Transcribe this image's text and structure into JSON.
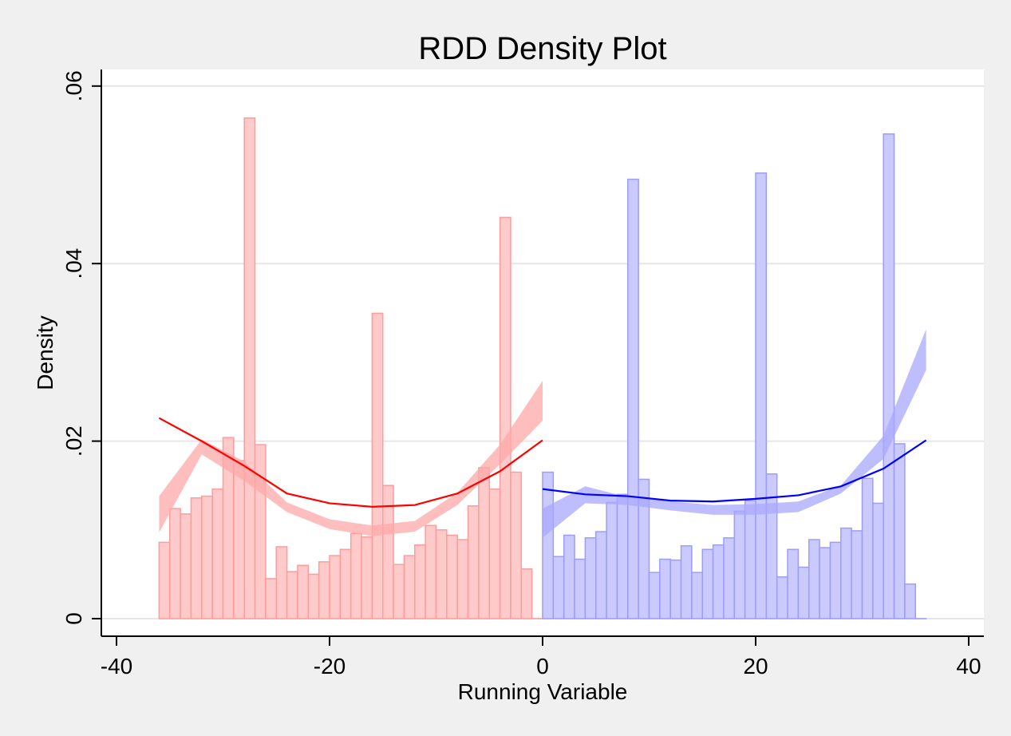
{
  "chart_data": {
    "type": "bar",
    "title": "RDD Density Plot",
    "xlabel": "Running Variable",
    "ylabel": "Density",
    "xlim": [
      -40,
      40
    ],
    "ylim": [
      0,
      0.06
    ],
    "x_ticks": [
      {
        "value": -40,
        "label": "-40"
      },
      {
        "value": -20,
        "label": "-20"
      },
      {
        "value": 0,
        "label": "0"
      },
      {
        "value": 20,
        "label": "20"
      },
      {
        "value": 40,
        "label": "40"
      }
    ],
    "y_ticks": [
      {
        "value": 0,
        "label": "0"
      },
      {
        "value": 0.02,
        "label": ".02"
      },
      {
        "value": 0.04,
        "label": ".04"
      },
      {
        "value": 0.06,
        "label": ".06"
      }
    ],
    "grid": "horizontal",
    "bin_width": 1,
    "left_color": "#ff0000",
    "right_color": "#0000ff",
    "left_fill": "#ffcaca",
    "right_fill": "#cacaff",
    "left_edge": "#ff9c9c",
    "right_edge": "#9c9cff",
    "left_band": "#ffa8a8",
    "right_band": "#a8a8ff",
    "left_histogram": {
      "bin_starts": [
        -36,
        -35,
        -34,
        -33,
        -32,
        -31,
        -30,
        -29,
        -28,
        -27,
        -26,
        -25,
        -24,
        -23,
        -22,
        -21,
        -20,
        -19,
        -18,
        -17,
        -16,
        -15,
        -14,
        -13,
        -12,
        -11,
        -10,
        -9,
        -8,
        -7,
        -6,
        -5,
        -4,
        -3,
        -2,
        -1
      ],
      "values": [
        0.0086,
        0.0124,
        0.0118,
        0.0136,
        0.0138,
        0.0146,
        0.0204,
        0.0178,
        0.0564,
        0.0196,
        0.0045,
        0.0081,
        0.0053,
        0.006,
        0.005,
        0.0064,
        0.0071,
        0.0078,
        0.0096,
        0.0092,
        0.0344,
        0.015,
        0.0061,
        0.0071,
        0.0083,
        0.0105,
        0.01,
        0.0094,
        0.0089,
        0.0127,
        0.017,
        0.0146,
        0.0452,
        0.0165,
        0.0056,
        0.0
      ]
    },
    "right_histogram": {
      "bin_starts": [
        0,
        1,
        2,
        3,
        4,
        5,
        6,
        7,
        8,
        9,
        10,
        11,
        12,
        13,
        14,
        15,
        16,
        17,
        18,
        19,
        20,
        21,
        22,
        23,
        24,
        25,
        26,
        27,
        28,
        29,
        30,
        31,
        32,
        33,
        34,
        35
      ],
      "values": [
        0.0165,
        0.007,
        0.0094,
        0.0067,
        0.0091,
        0.0098,
        0.0131,
        0.014,
        0.0495,
        0.0157,
        0.0052,
        0.0067,
        0.0066,
        0.0082,
        0.0052,
        0.0078,
        0.0083,
        0.0091,
        0.0121,
        0.0133,
        0.0502,
        0.0163,
        0.0047,
        0.0078,
        0.0058,
        0.0089,
        0.008,
        0.0086,
        0.0102,
        0.0099,
        0.0158,
        0.013,
        0.0546,
        0.0197,
        0.0039,
        0.0
      ]
    },
    "left_fit": {
      "x": [
        -36,
        -32,
        -28,
        -24,
        -20,
        -16,
        -12,
        -8,
        -4,
        0
      ],
      "y": [
        0.0226,
        0.02,
        0.0172,
        0.0141,
        0.013,
        0.0126,
        0.0128,
        0.0141,
        0.0166,
        0.0201
      ]
    },
    "left_ci": {
      "x": [
        -36,
        -32,
        -28,
        -24,
        -20,
        -16,
        -12,
        -8,
        -4,
        0
      ],
      "lower": [
        0.0097,
        0.0185,
        0.0155,
        0.012,
        0.0101,
        0.0093,
        0.0098,
        0.0128,
        0.0174,
        0.0223
      ],
      "upper": [
        0.0138,
        0.0202,
        0.0177,
        0.0131,
        0.0112,
        0.0105,
        0.011,
        0.0142,
        0.0196,
        0.0268
      ]
    },
    "right_fit": {
      "x": [
        0,
        4,
        8,
        12,
        16,
        20,
        24,
        28,
        32,
        36
      ],
      "y": [
        0.0146,
        0.014,
        0.0138,
        0.0133,
        0.0132,
        0.0135,
        0.0139,
        0.0149,
        0.0169,
        0.0201
      ]
    },
    "right_ci": {
      "x": [
        0,
        4,
        8,
        12,
        16,
        20,
        24,
        28,
        32,
        36
      ],
      "lower": [
        0.0091,
        0.013,
        0.0128,
        0.0122,
        0.0117,
        0.0117,
        0.012,
        0.0141,
        0.018,
        0.028
      ],
      "upper": [
        0.0124,
        0.0149,
        0.0137,
        0.0132,
        0.0128,
        0.0129,
        0.0132,
        0.015,
        0.0206,
        0.0326
      ]
    }
  }
}
